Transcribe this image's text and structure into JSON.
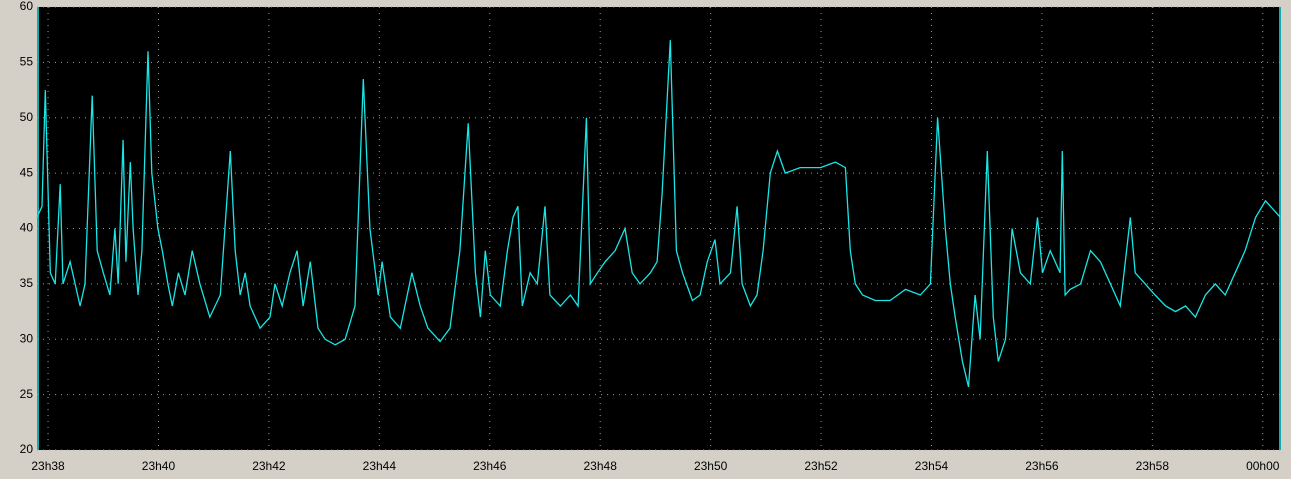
{
  "chart_data": {
    "type": "line",
    "x": [
      1417.8,
      1417.89,
      1417.95,
      1418.04,
      1418.13,
      1418.22,
      1418.27,
      1418.4,
      1418.58,
      1418.67,
      1418.8,
      1418.89,
      1419.0,
      1419.12,
      1419.21,
      1419.27,
      1419.36,
      1419.41,
      1419.49,
      1419.54,
      1419.63,
      1419.7,
      1419.81,
      1419.88,
      1419.99,
      1420.07,
      1420.17,
      1420.25,
      1420.36,
      1420.48,
      1420.61,
      1420.75,
      1420.93,
      1421.12,
      1421.3,
      1421.39,
      1421.48,
      1421.57,
      1421.66,
      1421.84,
      1422.02,
      1422.11,
      1422.24,
      1422.38,
      1422.51,
      1422.62,
      1422.75,
      1422.89,
      1423.02,
      1423.2,
      1423.38,
      1423.56,
      1423.71,
      1423.83,
      1423.98,
      1424.05,
      1424.2,
      1424.38,
      1424.59,
      1424.74,
      1424.88,
      1425.1,
      1425.28,
      1425.46,
      1425.61,
      1425.74,
      1425.83,
      1425.92,
      1426.01,
      1426.19,
      1426.32,
      1426.42,
      1426.51,
      1426.59,
      1426.73,
      1426.86,
      1427.0,
      1427.09,
      1427.28,
      1427.46,
      1427.6,
      1427.75,
      1427.82,
      1427.95,
      1428.09,
      1428.27,
      1428.45,
      1428.58,
      1428.72,
      1428.91,
      1429.03,
      1429.12,
      1429.27,
      1429.38,
      1429.49,
      1429.67,
      1429.81,
      1429.94,
      1430.08,
      1430.17,
      1430.36,
      1430.48,
      1430.57,
      1430.72,
      1430.84,
      1430.95,
      1431.08,
      1431.21,
      1431.35,
      1431.62,
      1431.99,
      1432.26,
      1432.44,
      1432.53,
      1432.62,
      1432.75,
      1432.98,
      1433.25,
      1433.53,
      1433.8,
      1433.98,
      1434.11,
      1434.25,
      1434.34,
      1434.43,
      1434.56,
      1434.67,
      1434.79,
      1434.88,
      1435.01,
      1435.12,
      1435.21,
      1435.34,
      1435.46,
      1435.61,
      1435.79,
      1435.92,
      1436.01,
      1436.15,
      1436.33,
      1436.37,
      1436.42,
      1436.51,
      1436.7,
      1436.88,
      1437.06,
      1437.24,
      1437.42,
      1437.6,
      1437.69,
      1437.87,
      1438.05,
      1438.24,
      1438.42,
      1438.6,
      1438.78,
      1438.96,
      1439.14,
      1439.32,
      1439.5,
      1439.68,
      1439.87,
      1440.05,
      1440.23,
      1440.32
    ],
    "series": [
      {
        "color": "#19e6e6",
        "values": [
          41,
          42,
          52.5,
          36,
          35,
          44,
          35,
          37,
          33,
          35,
          52,
          38,
          36,
          34,
          40,
          35,
          48,
          37,
          46,
          40,
          34,
          38,
          56,
          45,
          40,
          38,
          35,
          33,
          36,
          34,
          38,
          35,
          32,
          34,
          47,
          38,
          34,
          36,
          33,
          31,
          32,
          35,
          33,
          36,
          38,
          33,
          37,
          31,
          30,
          29.5,
          30,
          33,
          53.5,
          40,
          34,
          37,
          32,
          31,
          36,
          33,
          31,
          29.8,
          31,
          38,
          49.5,
          36,
          32,
          38,
          34,
          33,
          38,
          41,
          42,
          33,
          36,
          35,
          42,
          34,
          33,
          34,
          33,
          50,
          35,
          36,
          37,
          38,
          40,
          36,
          35,
          36,
          37,
          43,
          57,
          38,
          36,
          33.5,
          34,
          37,
          39,
          35,
          36,
          42,
          35,
          33,
          34,
          38,
          45,
          47,
          45,
          45.5,
          45.5,
          46,
          45.5,
          38,
          35,
          34,
          33.5,
          33.5,
          34.5,
          34,
          35,
          50,
          40,
          35,
          32,
          28,
          25.7,
          34,
          30,
          47,
          32,
          28,
          30,
          40,
          36,
          35,
          41,
          36,
          38,
          36,
          47,
          34,
          34.5,
          35,
          38,
          37,
          35,
          33,
          41,
          36,
          35,
          34,
          33,
          32.5,
          33,
          32,
          34,
          35,
          34,
          36,
          38,
          41,
          42.5,
          41.5,
          41
        ]
      }
    ],
    "xlim": [
      1417.8,
      1440.33
    ],
    "xticks": [
      {
        "value": 1418,
        "label": "23h38"
      },
      {
        "value": 1420,
        "label": "23h40"
      },
      {
        "value": 1422,
        "label": "23h42"
      },
      {
        "value": 1424,
        "label": "23h44"
      },
      {
        "value": 1426,
        "label": "23h46"
      },
      {
        "value": 1428,
        "label": "23h48"
      },
      {
        "value": 1430,
        "label": "23h50"
      },
      {
        "value": 1432,
        "label": "23h52"
      },
      {
        "value": 1434,
        "label": "23h54"
      },
      {
        "value": 1436,
        "label": "23h56"
      },
      {
        "value": 1438,
        "label": "23h58"
      },
      {
        "value": 1440,
        "label": "00h00"
      }
    ],
    "ylim": [
      20,
      60
    ],
    "yticks": [
      20,
      25,
      30,
      35,
      40,
      45,
      50,
      55,
      60
    ],
    "grid": true
  }
}
